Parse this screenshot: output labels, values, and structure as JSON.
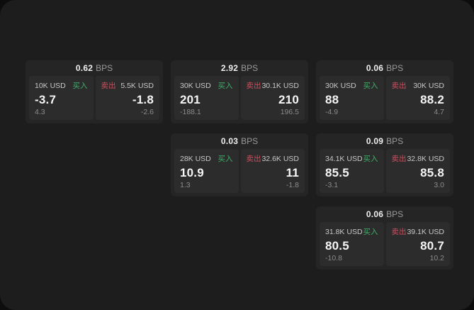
{
  "labels": {
    "bps": "BPS",
    "buy": "买入",
    "sell": "卖出"
  },
  "colors": {
    "background": "#0d0d0d",
    "panel": "#1d1d1d",
    "card": "#252525",
    "tile": "#2c2c2c",
    "buy_green": "#3fae6a",
    "sell_red": "#cb4e5e"
  },
  "cards": [
    {
      "spread": "0.62",
      "buy": {
        "notional": "10K USD",
        "price": "-3.7",
        "skew": "4.3"
      },
      "sell": {
        "notional": "5.5K USD",
        "price": "-1.8",
        "skew": "-2.6"
      }
    },
    {
      "spread": "2.92",
      "buy": {
        "notional": "30K USD",
        "price": "201",
        "skew": "-188.1"
      },
      "sell": {
        "notional": "30.1K USD",
        "price": "210",
        "skew": "196.5"
      }
    },
    {
      "spread": "0.06",
      "buy": {
        "notional": "30K USD",
        "price": "88",
        "skew": "-4.9"
      },
      "sell": {
        "notional": "30K USD",
        "price": "88.2",
        "skew": "4.7"
      }
    },
    {
      "spread": "0.03",
      "buy": {
        "notional": "28K USD",
        "price": "10.9",
        "skew": "1.3"
      },
      "sell": {
        "notional": "32.6K USD",
        "price": "11",
        "skew": "-1.8"
      }
    },
    {
      "spread": "0.09",
      "buy": {
        "notional": "34.1K USD",
        "price": "85.5",
        "skew": "-3.1"
      },
      "sell": {
        "notional": "32.8K USD",
        "price": "85.8",
        "skew": "3.0"
      }
    },
    {
      "spread": "0.06",
      "buy": {
        "notional": "31.8K USD",
        "price": "80.5",
        "skew": "-10.8"
      },
      "sell": {
        "notional": "39.1K USD",
        "price": "80.7",
        "skew": "10.2"
      }
    }
  ]
}
